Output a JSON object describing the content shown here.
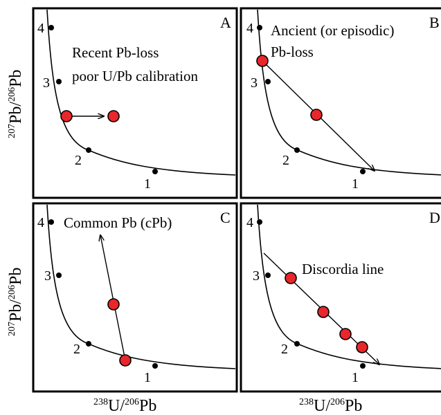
{
  "panels": {
    "A": {
      "letter": "A",
      "text1": "Recent Pb-loss",
      "text2": "poor U/Pb calibration"
    },
    "B": {
      "letter": "B",
      "text1": "Ancient (or episodic)",
      "text2": "Pb-loss"
    },
    "C": {
      "letter": "C",
      "text1": "Common Pb (cPb)"
    },
    "D": {
      "letter": "D",
      "text1": "Discordia line"
    }
  },
  "concordia_points": [
    "1",
    "2",
    "3",
    "4"
  ],
  "axes": {
    "x_iso_top": "238",
    "x_el_top": "U/",
    "x_iso_bot": "206",
    "x_el_bot": "Pb",
    "y_iso_top": "207",
    "y_el_top": "Pb/",
    "y_iso_bot": "206",
    "y_el_bot": "Pb"
  },
  "colors": {
    "marker": "#e8262b",
    "line": "#000000"
  }
}
